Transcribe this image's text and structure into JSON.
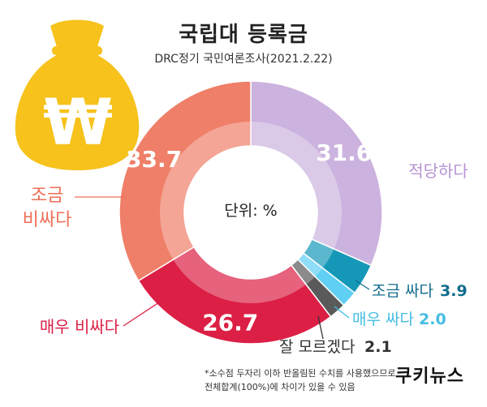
{
  "title": "국립대 등록금",
  "subtitle": "DRC정기 국민여론조사(2021.2.22)",
  "center_label": "단위: %",
  "footnote": {
    "line1": "*소수점 두자리 이하 반올림된 수치를 사용했으므로",
    "line2": "전체합계(100%)에 차이가 있을 수 있음"
  },
  "logo": "쿠키뉴스",
  "icon": "money-bag-icon",
  "colors": {
    "appropriate": "#ccb2de",
    "a_bit_cheap": "#1598b8",
    "very_cheap": "#5fcff3",
    "dont_know": "#5a5a5a",
    "very_expensive": "#dc1f45",
    "a_bit_expensive": "#ef7f68",
    "bag": "#f6c21b"
  },
  "chart_data": {
    "type": "pie",
    "donut": true,
    "unit": "%",
    "slices": [
      {
        "label": "적당하다",
        "value": 31.6,
        "value_text": "31.6",
        "color": "#ccb2de",
        "label_color": "#b693d3",
        "label_inside": true
      },
      {
        "label": "조금 싸다",
        "value": 3.9,
        "value_text": "3.9",
        "color": "#1598b8",
        "label_color": "#126c8c",
        "label_inside": false
      },
      {
        "label": "매우 싸다",
        "value": 2.0,
        "value_text": "2.0",
        "color": "#5fcff3",
        "label_color": "#44bde3",
        "label_inside": false
      },
      {
        "label": "잘 모르겠다",
        "value": 2.1,
        "value_text": "2.1",
        "color": "#5a5a5a",
        "label_color": "#333333",
        "label_inside": false
      },
      {
        "label": "매우 비싸다",
        "value": 26.7,
        "value_text": "26.7",
        "color": "#dc1f45",
        "label_color": "#dc1f45",
        "label_inside": true
      },
      {
        "label_lines": [
          "조금",
          "비싸다"
        ],
        "value": 33.7,
        "value_text": "33.7",
        "color": "#ef7f68",
        "label_color": "#ee6e57",
        "label_inside": true
      }
    ]
  }
}
